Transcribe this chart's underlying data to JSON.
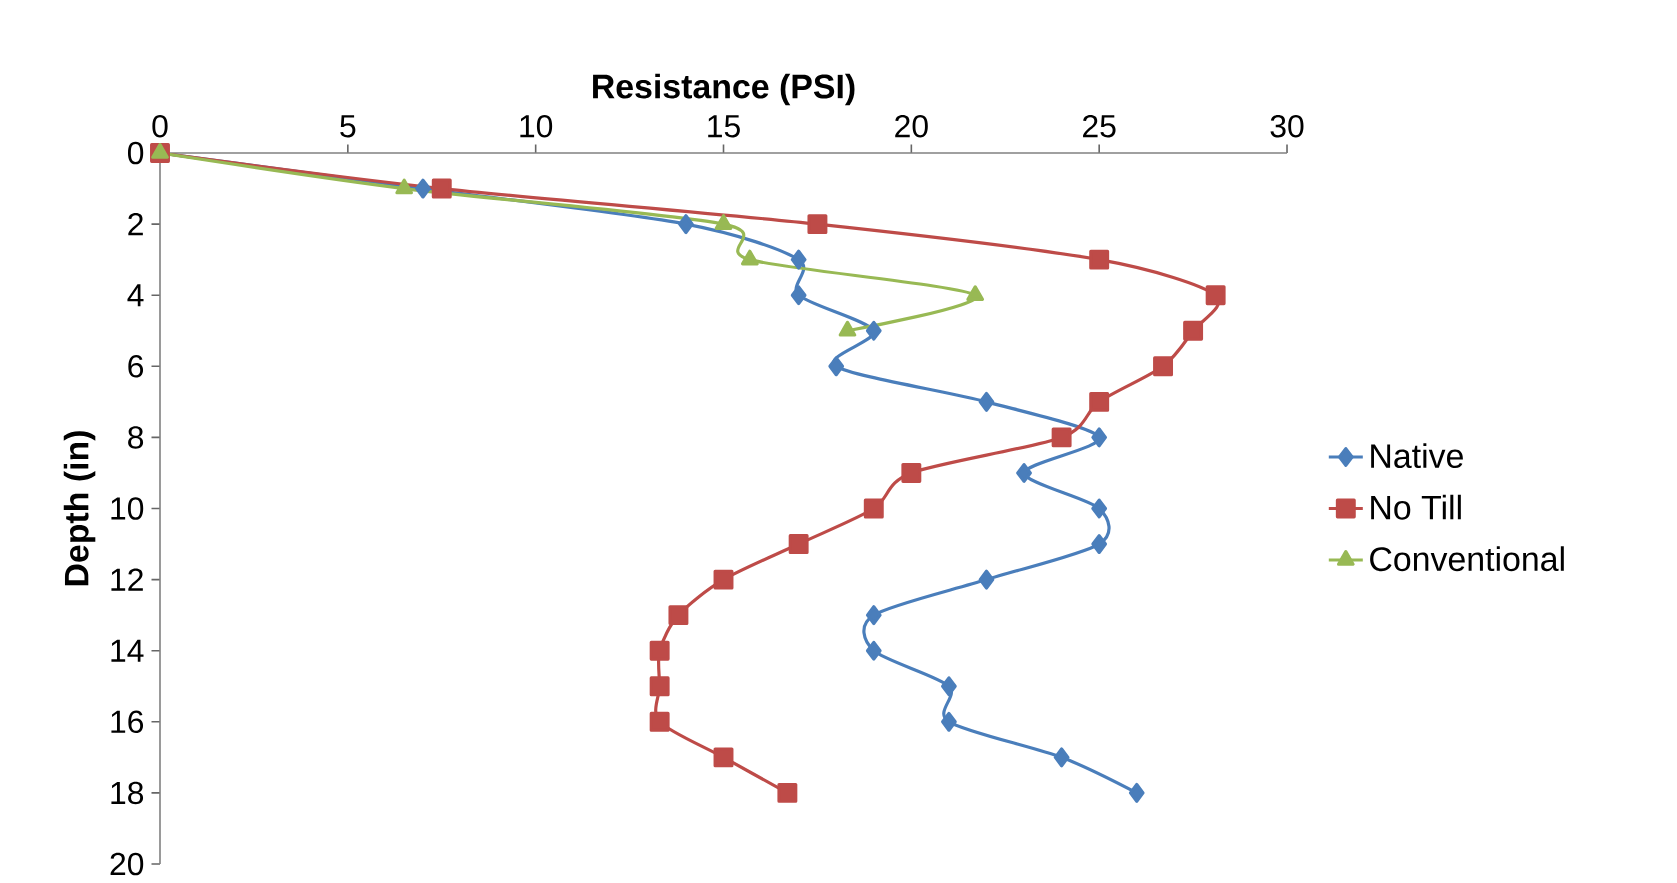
{
  "chart_data": {
    "type": "line",
    "xlabel": "Resistance (PSI)",
    "ylabel": "Depth (in)",
    "xlim": [
      0,
      30
    ],
    "ylim": [
      20,
      0
    ],
    "xticks": [
      0,
      5,
      10,
      15,
      20,
      25,
      30
    ],
    "yticks": [
      0,
      2,
      4,
      6,
      8,
      10,
      12,
      14,
      16,
      18,
      20
    ],
    "grid": false,
    "legend": "right",
    "line_style": "solid",
    "series": [
      {
        "name": "Native",
        "color": "#4a7ebb",
        "marker": "diamond",
        "x": [
          0,
          7,
          14,
          17,
          17,
          19,
          18,
          22,
          25,
          23,
          25,
          25,
          22,
          19,
          19,
          21,
          21,
          24,
          26
        ],
        "values": [
          0,
          1,
          2,
          3,
          4,
          5,
          6,
          7,
          8,
          9,
          10,
          11,
          12,
          13,
          14,
          15,
          16,
          17,
          18
        ]
      },
      {
        "name": "No Till",
        "color": "#be4b48",
        "marker": "square",
        "x": [
          0,
          7.5,
          17.5,
          25,
          28.1,
          27.5,
          26.7,
          25,
          24,
          20,
          19,
          17,
          15,
          13.8,
          13.3,
          13.3,
          13.3,
          15,
          16.7
        ],
        "values": [
          0,
          1,
          2,
          3,
          4,
          5,
          6,
          7,
          8,
          9,
          10,
          11,
          12,
          13,
          14,
          15,
          16,
          17,
          18
        ]
      },
      {
        "name": "Conventional",
        "color": "#98b954",
        "marker": "triangle",
        "x": [
          0,
          6.5,
          15,
          15.7,
          21.7,
          18.3
        ],
        "values": [
          0,
          1,
          2,
          3,
          4,
          5
        ]
      }
    ]
  }
}
